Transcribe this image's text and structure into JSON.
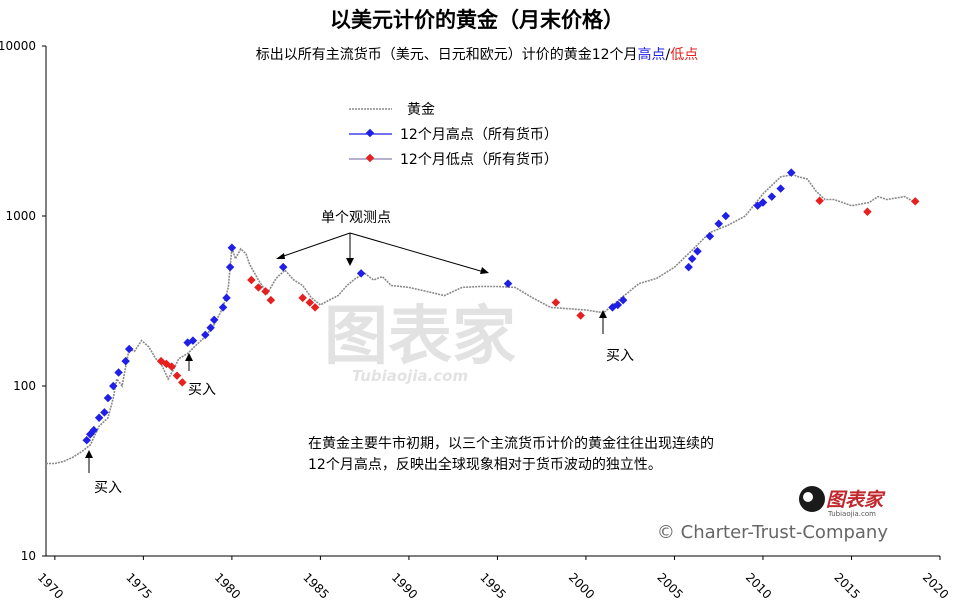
{
  "title": "以美元计价的黄金（月末价格）",
  "subtitle": {
    "prefix": "标出以所有主流货币（美元、日元和欧元）计价的黄金12个月",
    "high": "高点",
    "sep": "/",
    "low": "低点"
  },
  "legend": {
    "gold": "黄金",
    "high": "12个月高点（所有货币）",
    "low": "12个月低点（所有货币）"
  },
  "annotations": {
    "single_point": "单个观测点",
    "buy1": "买入",
    "buy2": "买入",
    "buy3": "买入",
    "note_line1": "在黄金主要牛市初期，以三个主流货币计价的黄金往往出现连续的",
    "note_line2": "12个月高点，反映出全球现象相对于货币波动的独立性。"
  },
  "watermark": {
    "brand": "图表家",
    "url": "Tubiaojia.com"
  },
  "copyright": "© Charter-Trust-Company",
  "colors": {
    "gold": "#8a8a8a",
    "high": "#1f1fe6",
    "low": "#e61f1f"
  },
  "chart_data": {
    "type": "line",
    "title": "以美元计价的黄金（月末价格）",
    "y_scale": "log",
    "ylim": [
      10,
      10000
    ],
    "xlim": [
      1969.5,
      2020
    ],
    "y_ticks": [
      "10",
      "100",
      "1000",
      "10000"
    ],
    "x_ticks": [
      "1970",
      "1975",
      "1980",
      "1985",
      "1990",
      "1995",
      "2000",
      "2005",
      "2010",
      "2015",
      "2020"
    ],
    "series": [
      {
        "name": "黄金",
        "x": [
          1969.5,
          1970.0,
          1970.5,
          1971.0,
          1971.5,
          1972.0,
          1972.5,
          1973.0,
          1973.3,
          1973.5,
          1973.8,
          1974.0,
          1974.2,
          1974.5,
          1974.9,
          1975.3,
          1975.7,
          1976.0,
          1976.4,
          1976.7,
          1977.0,
          1977.5,
          1978.0,
          1978.5,
          1979.0,
          1979.5,
          1979.8,
          1980.0,
          1980.2,
          1980.5,
          1980.8,
          1981.0,
          1981.5,
          1982.0,
          1982.5,
          1983.0,
          1983.5,
          1984.0,
          1984.5,
          1985.0,
          1985.5,
          1986.0,
          1986.5,
          1987.0,
          1987.5,
          1988.0,
          1988.5,
          1989.0,
          1990.0,
          1991.0,
          1992.0,
          1993.0,
          1994.0,
          1995.0,
          1996.0,
          1997.0,
          1998.0,
          1999.0,
          2000.0,
          2001.0,
          2002.0,
          2003.0,
          2004.0,
          2005.0,
          2006.0,
          2007.0,
          2008.0,
          2009.0,
          2010.0,
          2011.0,
          2011.7,
          2012.0,
          2012.5,
          2013.0,
          2013.5,
          2014.0,
          2015.0,
          2016.0,
          2016.5,
          2017.0,
          2018.0,
          2018.6
        ],
        "y": [
          35,
          35,
          36,
          38,
          41,
          45,
          58,
          65,
          85,
          110,
          100,
          130,
          165,
          160,
          185,
          170,
          145,
          135,
          110,
          125,
          145,
          155,
          175,
          195,
          230,
          290,
          380,
          650,
          560,
          640,
          600,
          520,
          420,
          350,
          430,
          480,
          420,
          390,
          330,
          300,
          320,
          340,
          390,
          430,
          460,
          420,
          440,
          390,
          380,
          360,
          340,
          380,
          385,
          385,
          380,
          330,
          290,
          285,
          280,
          270,
          330,
          400,
          430,
          500,
          630,
          800,
          880,
          1000,
          1350,
          1700,
          1750,
          1700,
          1650,
          1400,
          1250,
          1250,
          1150,
          1200,
          1300,
          1250,
          1300,
          1200
        ]
      },
      {
        "name": "12个月高点（所有货币）",
        "x": [
          1971.8,
          1972.0,
          1972.2,
          1972.5,
          1972.8,
          1973.0,
          1973.3,
          1973.6,
          1974.0,
          1974.2,
          1977.5,
          1977.8,
          1978.5,
          1978.8,
          1979.0,
          1979.5,
          1979.7,
          1979.9,
          1980.0,
          1982.9,
          1987.3,
          1995.6,
          2001.5,
          2001.8,
          2002.1,
          2005.8,
          2006.0,
          2006.3,
          2007.0,
          2007.5,
          2007.9,
          2009.7,
          2010.0,
          2010.5,
          2011.0,
          2011.6
        ],
        "y": [
          48,
          52,
          55,
          65,
          70,
          85,
          100,
          120,
          140,
          165,
          180,
          185,
          200,
          220,
          245,
          290,
          330,
          500,
          650,
          500,
          460,
          400,
          290,
          300,
          320,
          500,
          560,
          620,
          760,
          900,
          1000,
          1150,
          1200,
          1300,
          1450,
          1800
        ]
      },
      {
        "name": "12个月低点（所有货币）",
        "x": [
          1976.0,
          1976.3,
          1976.6,
          1976.9,
          1977.2,
          1981.1,
          1981.5,
          1981.9,
          1982.2,
          1984.0,
          1984.4,
          1984.7,
          1998.3,
          1999.7,
          2013.2,
          2015.9,
          2018.6
        ],
        "y": [
          140,
          135,
          130,
          115,
          105,
          420,
          380,
          360,
          320,
          330,
          310,
          290,
          310,
          260,
          1230,
          1060,
          1220
        ]
      }
    ]
  }
}
